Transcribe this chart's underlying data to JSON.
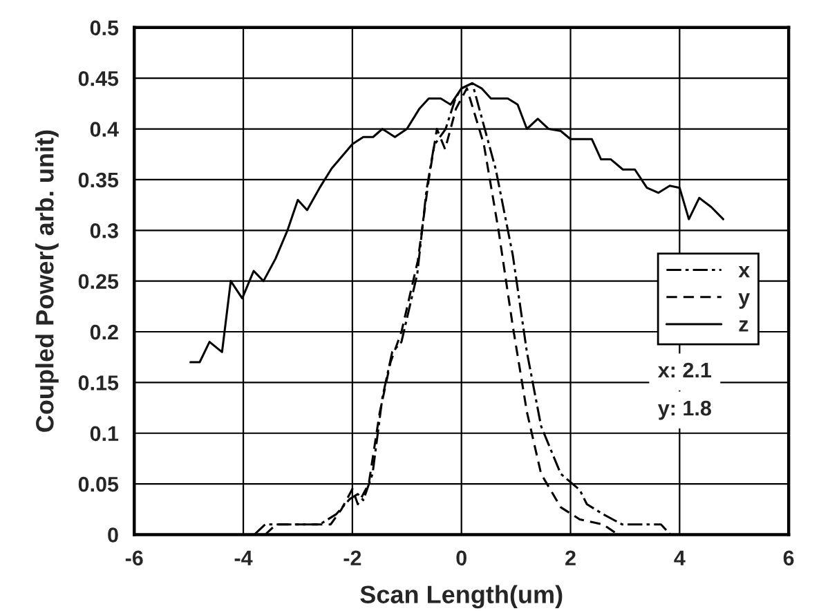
{
  "chart_data": {
    "type": "line",
    "xlabel": "Scan Length(um)",
    "ylabel": "Coupled Power( arb. unit)",
    "xlim": [
      -6,
      6
    ],
    "xticks": [
      -6,
      -4,
      -2,
      0,
      2,
      4,
      6
    ],
    "ylim": [
      0,
      0.5
    ],
    "yticks": [
      0,
      0.05,
      0.1,
      0.15,
      0.2,
      0.25,
      0.3,
      0.35,
      0.4,
      0.45,
      0.5
    ],
    "grid": true,
    "legend": "right",
    "marker": "none",
    "annotations": [
      "x: 2.1",
      "y: 1.8"
    ],
    "series": [
      {
        "name": "x",
        "color": "#000000",
        "line_style": "dashdot",
        "x": [
          -3.8,
          -3.6,
          -2.6,
          -2.3,
          -2.05,
          -1.9,
          -1.8,
          -1.63,
          -1.45,
          -1.27,
          -1.1,
          -0.81,
          -0.64,
          -0.5,
          -0.29,
          -0.11,
          0.0,
          0.2,
          0.63,
          0.94,
          1.2,
          1.46,
          1.82,
          2.17,
          2.3,
          2.6,
          2.95,
          3.66,
          3.83
        ],
        "values": [
          0,
          0.01,
          0.01,
          0.02,
          0.035,
          0.04,
          0.034,
          0.06,
          0.135,
          0.18,
          0.19,
          0.257,
          0.34,
          0.384,
          0.4,
          0.43,
          0.44,
          0.445,
          0.36,
          0.276,
          0.18,
          0.107,
          0.06,
          0.044,
          0.03,
          0.02,
          0.01,
          0.01,
          0
        ]
      },
      {
        "name": "y",
        "color": "#000000",
        "line_style": "dashed",
        "x": [
          -3.6,
          -3.4,
          -2.4,
          -2.2,
          -2.0,
          -1.9,
          -1.7,
          -1.5,
          -1.3,
          -1.1,
          -0.8,
          -0.6,
          -0.45,
          -0.3,
          -0.1,
          0.1,
          0.41,
          0.68,
          0.94,
          1.2,
          1.46,
          1.82,
          2.17,
          2.6,
          2.87
        ],
        "values": [
          0,
          0.01,
          0.01,
          0.025,
          0.045,
          0.03,
          0.05,
          0.12,
          0.17,
          0.2,
          0.27,
          0.35,
          0.4,
          0.38,
          0.42,
          0.44,
          0.385,
          0.3,
          0.206,
          0.121,
          0.06,
          0.027,
          0.015,
          0.01,
          0
        ]
      },
      {
        "name": "z",
        "color": "#000000",
        "line_style": "solid",
        "x": [
          -4.97,
          -4.8,
          -4.62,
          -4.39,
          -4.23,
          -4.02,
          -3.81,
          -3.63,
          -3.41,
          -3.19,
          -3.0,
          -2.83,
          -2.6,
          -2.38,
          -2.0,
          -1.8,
          -1.62,
          -1.45,
          -1.22,
          -1.0,
          -0.77,
          -0.6,
          -0.38,
          -0.2,
          0.0,
          0.2,
          0.37,
          0.54,
          0.85,
          1.03,
          1.2,
          1.4,
          1.6,
          1.82,
          2.0,
          2.39,
          2.56,
          2.74,
          2.96,
          3.18,
          3.4,
          3.61,
          3.82,
          4.0,
          4.17,
          4.36,
          4.58,
          4.8
        ],
        "values": [
          0.17,
          0.17,
          0.19,
          0.18,
          0.25,
          0.233,
          0.26,
          0.25,
          0.272,
          0.3,
          0.33,
          0.32,
          0.342,
          0.361,
          0.385,
          0.392,
          0.392,
          0.4,
          0.392,
          0.4,
          0.42,
          0.43,
          0.43,
          0.424,
          0.44,
          0.445,
          0.44,
          0.43,
          0.43,
          0.424,
          0.4,
          0.41,
          0.4,
          0.398,
          0.39,
          0.39,
          0.37,
          0.37,
          0.36,
          0.36,
          0.342,
          0.337,
          0.344,
          0.342,
          0.311,
          0.332,
          0.323,
          0.311
        ]
      }
    ]
  }
}
